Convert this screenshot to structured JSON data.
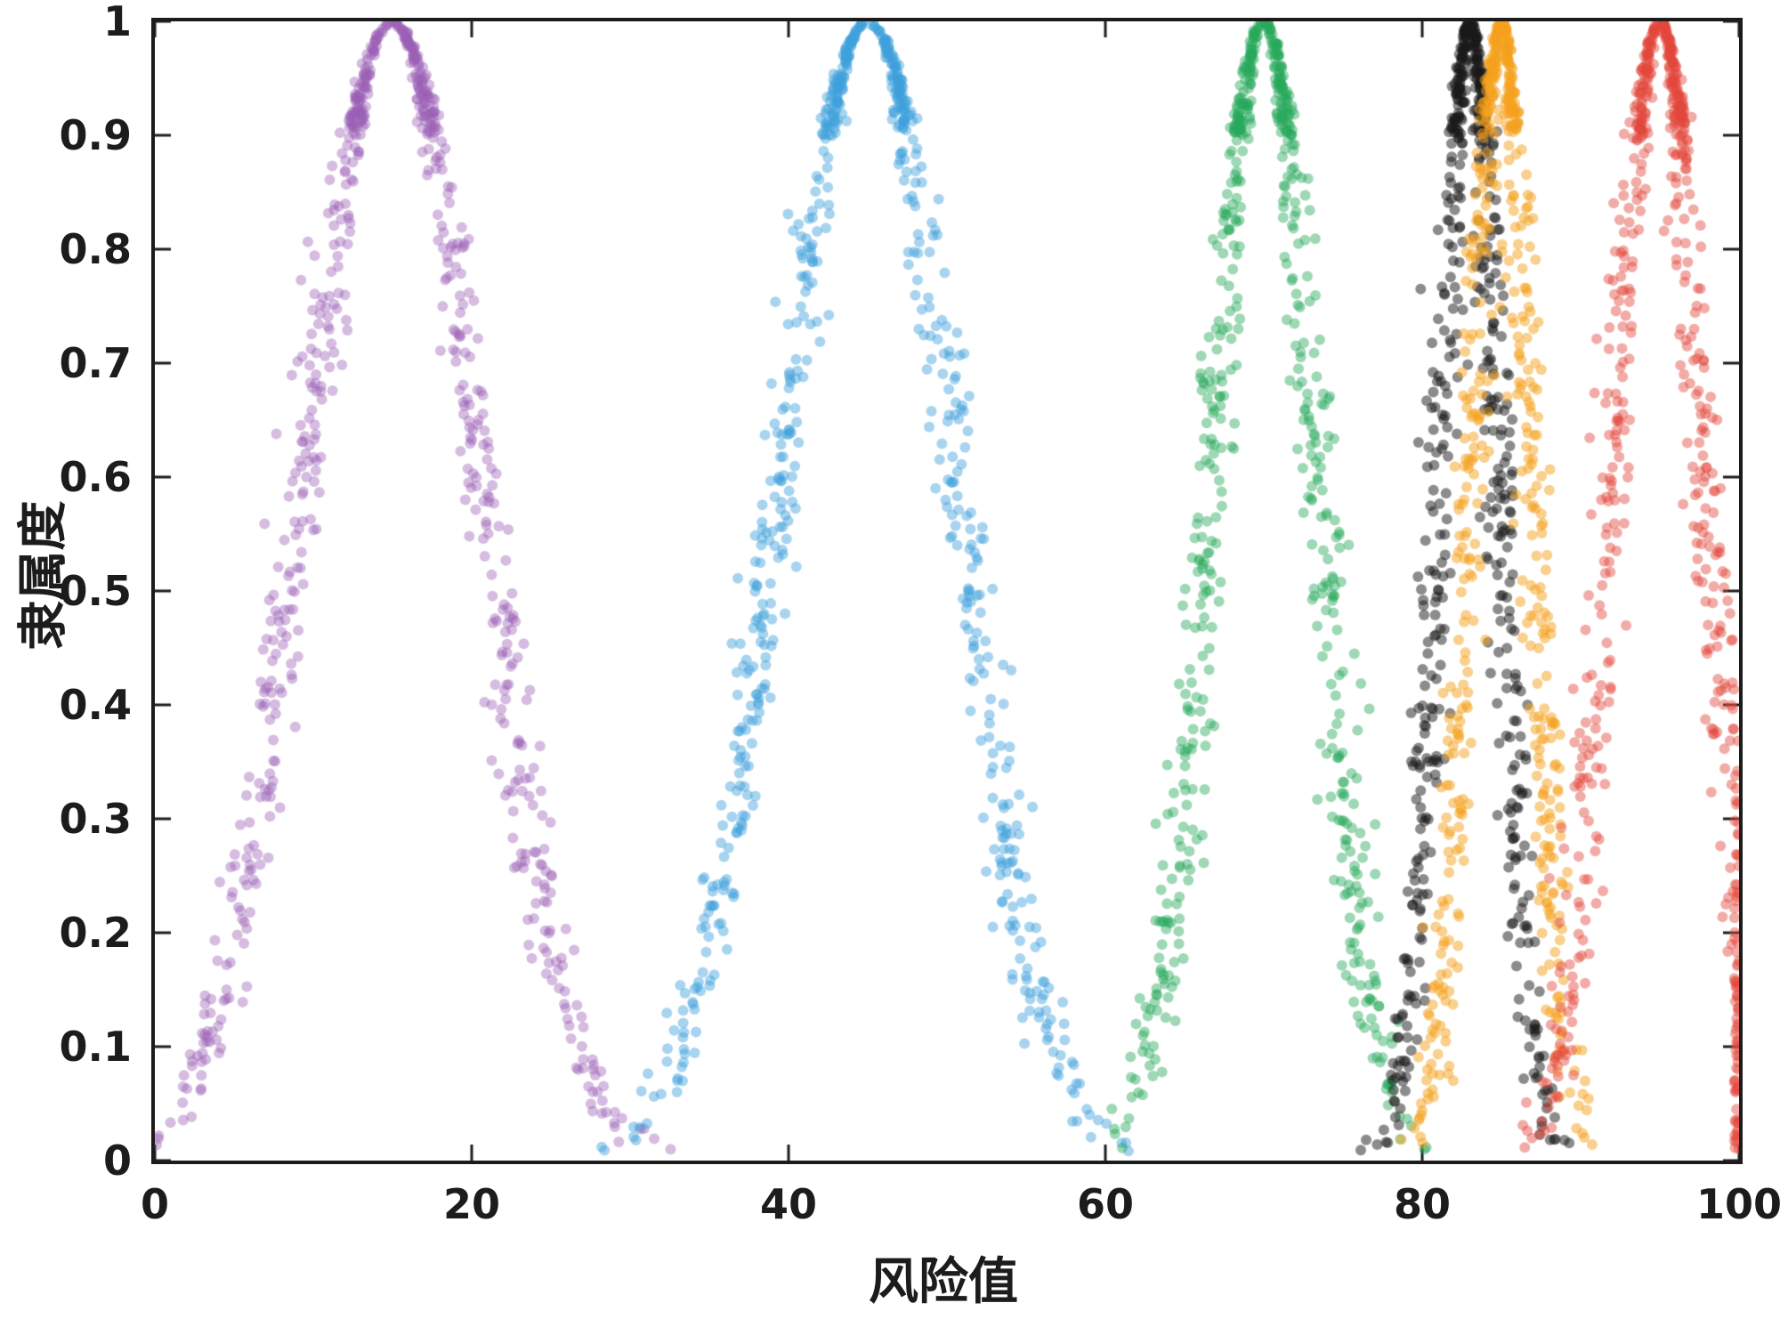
{
  "chart_data": {
    "type": "scatter",
    "title": "",
    "xlabel": "风险值",
    "ylabel": "隶属度",
    "xlim": [
      0,
      100
    ],
    "ylim": [
      0,
      1
    ],
    "xticks": [
      "0",
      "20",
      "40",
      "60",
      "80",
      "100"
    ],
    "xtick_values": [
      0,
      20,
      40,
      60,
      80,
      100
    ],
    "yticks": [
      "0",
      "0.1",
      "0.2",
      "0.3",
      "0.4",
      "0.5",
      "0.6",
      "0.7",
      "0.8",
      "0.9",
      "1"
    ],
    "ytick_values": [
      0,
      0.1,
      0.2,
      0.3,
      0.4,
      0.5,
      0.6,
      0.7,
      0.8,
      0.9,
      1
    ],
    "grid": false,
    "legend": null,
    "description": "Fuzzy membership functions of risk value: scattered samples around gaussian membership curves y = exp(-(x-center)^2 / (2*sigma^2))",
    "series": [
      {
        "name": "cluster-purple",
        "color": "#9C5FB5",
        "alpha": 0.42,
        "center": 15,
        "sigma": 5.5,
        "points": 720,
        "jitter": 0.6
      },
      {
        "name": "cluster-blue",
        "color": "#3D9FDC",
        "alpha": 0.45,
        "center": 45,
        "sigma": 5.5,
        "points": 720,
        "jitter": 0.6
      },
      {
        "name": "cluster-green",
        "color": "#27A85C",
        "alpha": 0.45,
        "center": 70,
        "sigma": 3.3,
        "points": 680,
        "jitter": 0.55
      },
      {
        "name": "cluster-black",
        "color": "#1a1a1a",
        "alpha": 0.5,
        "center": 83,
        "sigma": 1.9,
        "points": 640,
        "jitter": 0.5
      },
      {
        "name": "cluster-orange",
        "color": "#F5A11E",
        "alpha": 0.5,
        "center": 85,
        "sigma": 1.9,
        "points": 640,
        "jitter": 0.5
      },
      {
        "name": "cluster-red",
        "color": "#E3483B",
        "alpha": 0.45,
        "center": 95,
        "sigma": 2.9,
        "points": 680,
        "jitter": 0.55
      }
    ]
  }
}
